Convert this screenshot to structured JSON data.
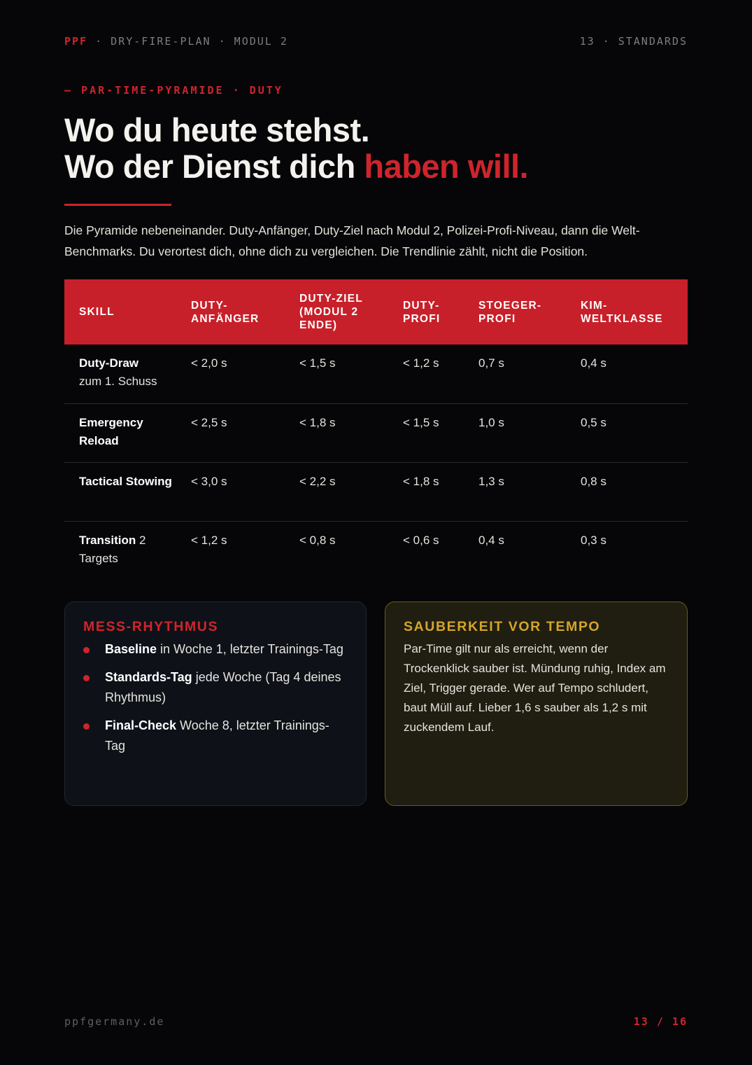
{
  "header": {
    "brand": "PPF",
    "trail": " · DRY-FIRE-PLAN · MODUL 2",
    "section": "13 · STANDARDS"
  },
  "eyebrow": "— PAR-TIME-PYRAMIDE · DUTY",
  "title": {
    "line1": "Wo du heute stehst.",
    "line2_prefix": "Wo der Dienst dich ",
    "line2_accent": "haben will."
  },
  "intro": "Die Pyramide nebeneinander. Duty-Anfänger, Duty-Ziel nach Modul 2, Polizei-Profi-Niveau, dann die Welt-Benchmarks. Du verortest dich, ohne dich zu vergleichen. Die Trendlinie zählt, nicht die Position.",
  "table": {
    "headers": [
      "SKILL",
      "DUTY-ANFÄNGER",
      "DUTY-ZIEL (MODUL 2 ENDE)",
      "DUTY-PROFI",
      "STOEGER-PROFI",
      "KIM-WELTKLASSE"
    ],
    "rows": [
      {
        "skill_bold": "Duty-Draw",
        "skill_rest": "zum 1. Schuss",
        "values": [
          "< 2,0 s",
          "< 1,5 s",
          "< 1,2 s",
          "0,7 s",
          "0,4 s"
        ]
      },
      {
        "skill_bold": "Emergency Reload",
        "skill_rest": "",
        "values": [
          "< 2,5 s",
          "< 1,8 s",
          "< 1,5 s",
          "1,0 s",
          "0,5 s"
        ]
      },
      {
        "skill_bold": "Tactical Stowing",
        "skill_rest": "",
        "values": [
          "< 3,0 s",
          "< 2,2 s",
          "< 1,8 s",
          "1,3 s",
          "0,8 s"
        ]
      },
      {
        "skill_bold": "Transition",
        "skill_rest": " 2 Targets",
        "values": [
          "< 1,2 s",
          "< 0,8 s",
          "< 0,6 s",
          "0,4 s",
          "0,3 s"
        ]
      }
    ]
  },
  "mess": {
    "title": "MESS-RHYTHMUS",
    "items": [
      {
        "bold": "Baseline",
        "rest": " in Woche 1, letzter Trainings-Tag"
      },
      {
        "bold": "Standards-Tag",
        "rest": " jede Woche (Tag 4 deines Rhythmus)"
      },
      {
        "bold": "Final-Check",
        "rest": " Woche 8, letzter Trainings-Tag"
      }
    ]
  },
  "sauberkeit": {
    "title": "SAUBERKEIT VOR TEMPO",
    "text": "Par-Time gilt nur als erreicht, wenn der Trockenklick sauber ist. Mündung ruhig, Index am Ziel, Trigger gerade. Wer auf Tempo schludert, baut Müll auf. Lieber 1,6 s sauber als 1,2 s mit zuckendem Lauf."
  },
  "footer": {
    "site": "ppfgermany.de",
    "page": "13 / 16"
  },
  "colors": {
    "accent": "#d0242c",
    "gold": "#d5a52a",
    "background": "#060608"
  }
}
